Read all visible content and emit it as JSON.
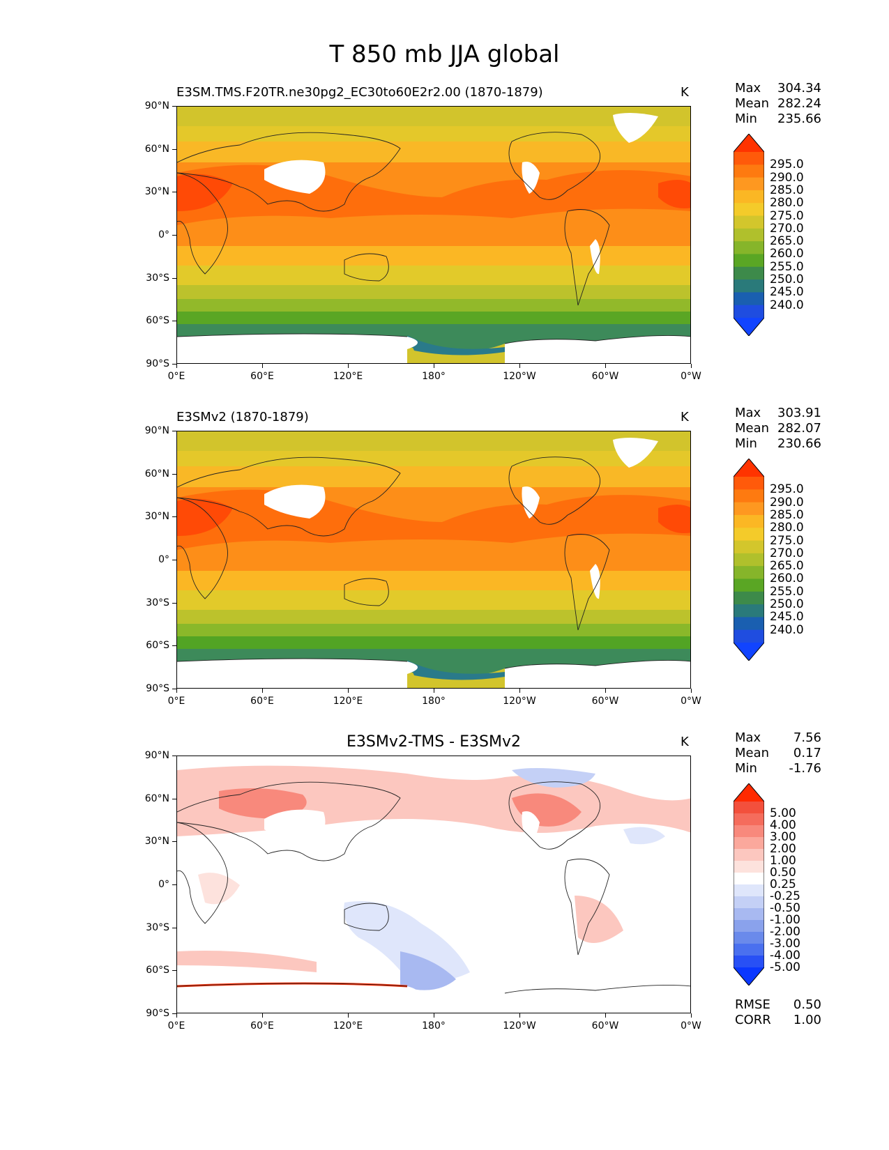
{
  "title": "T 850 mb JJA global",
  "units": "K",
  "axes": {
    "lat_ticks": [
      "90°N",
      "60°N",
      "30°N",
      "0°",
      "30°S",
      "60°S",
      "90°S"
    ],
    "lon_ticks": [
      "0°E",
      "60°E",
      "120°E",
      "180°",
      "120°W",
      "60°W",
      "0°W"
    ]
  },
  "panels": [
    {
      "title": "E3SM.TMS.F20TR.ne30pg2_EC30to60E2r2.00 (1870-1879)",
      "units": "K",
      "stats": {
        "max_label": "Max",
        "max": "304.34",
        "mean_label": "Mean",
        "mean": "282.24",
        "min_label": "Min",
        "min": "235.66"
      }
    },
    {
      "title": "E3SMv2 (1870-1879)",
      "units": "K",
      "stats": {
        "max_label": "Max",
        "max": "303.91",
        "mean_label": "Mean",
        "mean": "282.07",
        "min_label": "Min",
        "min": "230.66"
      }
    },
    {
      "title": "E3SMv2-TMS - E3SMv2",
      "units": "K",
      "stats": {
        "max_label": "Max",
        "max": "7.56",
        "mean_label": "Mean",
        "mean": "0.17",
        "min_label": "Min",
        "min": "-1.76"
      }
    }
  ],
  "colorbar_abs": {
    "labels": [
      "295.0",
      "290.0",
      "285.0",
      "280.0",
      "275.0",
      "270.0",
      "265.0",
      "260.0",
      "255.0",
      "250.0",
      "245.0",
      "240.0"
    ],
    "colors": [
      "#ff3300",
      "#ff5a0a",
      "#fe7a10",
      "#fe9820",
      "#fbb724",
      "#f4cb2a",
      "#d3c62c",
      "#b0c02c",
      "#86b52a",
      "#5aa624",
      "#3d8a4a",
      "#2a7a7a",
      "#1a5fb0",
      "#1f4de0",
      "#1144ff"
    ]
  },
  "colorbar_diff": {
    "labels": [
      "5.00",
      "4.00",
      "3.00",
      "2.00",
      "1.00",
      "0.50",
      "0.25",
      "-0.25",
      "-0.50",
      "-1.00",
      "-2.00",
      "-3.00",
      "-4.00",
      "-5.00"
    ],
    "colors": [
      "#ff2a00",
      "#f3503c",
      "#f56c5c",
      "#f8897c",
      "#fba89c",
      "#fcc7bf",
      "#fde2dd",
      "#ffffff",
      "#dfe6fb",
      "#c4d0f6",
      "#a8b9f1",
      "#8aa2ec",
      "#6a8aeb",
      "#4a70ef",
      "#2850f5",
      "#0a37ff"
    ]
  },
  "metrics": {
    "rmse_label": "RMSE",
    "rmse": "0.50",
    "corr_label": "CORR",
    "corr": "1.00"
  },
  "chart_data": {
    "type": "heatmap",
    "title": "T 850 mb JJA global",
    "variable": "Temperature at 850 mb, JJA",
    "units": "K",
    "lat_range": [
      -90,
      90
    ],
    "lon_range": [
      0,
      360
    ],
    "panels": [
      {
        "name": "E3SM.TMS.F20TR.ne30pg2_EC30to60E2r2.00 (1870-1879)",
        "max": 304.34,
        "mean": 282.24,
        "min": 235.66,
        "levels": [
          240,
          245,
          250,
          255,
          260,
          265,
          270,
          275,
          280,
          285,
          290,
          295
        ]
      },
      {
        "name": "E3SMv2 (1870-1879)",
        "max": 303.91,
        "mean": 282.07,
        "min": 230.66,
        "levels": [
          240,
          245,
          250,
          255,
          260,
          265,
          270,
          275,
          280,
          285,
          290,
          295
        ]
      },
      {
        "name": "E3SMv2-TMS - E3SMv2",
        "max": 7.56,
        "mean": 0.17,
        "min": -1.76,
        "rmse": 0.5,
        "corr": 1.0,
        "levels": [
          -5,
          -4,
          -3,
          -2,
          -1,
          -0.5,
          -0.25,
          0.25,
          0.5,
          1,
          2,
          3,
          4,
          5
        ]
      }
    ]
  }
}
